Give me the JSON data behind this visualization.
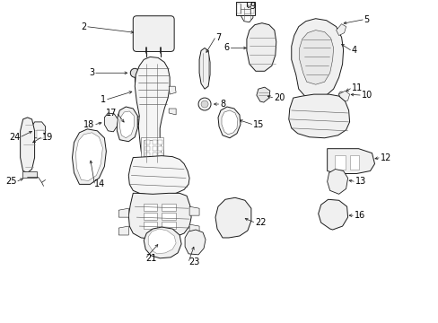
{
  "bg_color": "#ffffff",
  "line_color": "#1a1a1a",
  "label_color": "#000000",
  "fig_width": 4.89,
  "fig_height": 3.6,
  "dpi": 100,
  "lw_main": 0.7,
  "lw_thin": 0.4,
  "fontsize": 7.0
}
